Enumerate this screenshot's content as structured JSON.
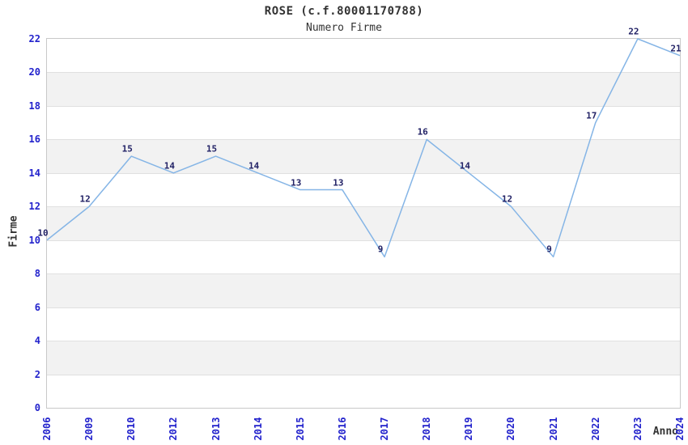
{
  "chart_data": {
    "type": "line",
    "title": "ROSE (c.f.80001170788)",
    "subtitle": "Numero Firme",
    "xlabel": "Anno",
    "ylabel": "Firme",
    "categories": [
      "2006",
      "2009",
      "2010",
      "2012",
      "2013",
      "2014",
      "2015",
      "2016",
      "2017",
      "2018",
      "2019",
      "2020",
      "2021",
      "2022",
      "2023",
      "2024"
    ],
    "values": [
      10,
      12,
      15,
      14,
      15,
      14,
      13,
      13,
      9,
      16,
      14,
      12,
      9,
      17,
      22,
      21
    ],
    "ylim": [
      0,
      22
    ],
    "ytick_step": 2,
    "yticks": [
      0,
      2,
      4,
      6,
      8,
      10,
      12,
      14,
      16,
      18,
      20,
      22
    ],
    "grid": "horizontal-bands-on",
    "legend": "none",
    "point_labels_shown": true,
    "colors": {
      "line": "#85b5e6",
      "tick_label": "#2222cc",
      "point_label": "#222266",
      "band": "#f2f2f2",
      "gridline": "#e0e0e0",
      "border": "#c9c9c9",
      "text": "#333333",
      "background": "#ffffff"
    }
  }
}
